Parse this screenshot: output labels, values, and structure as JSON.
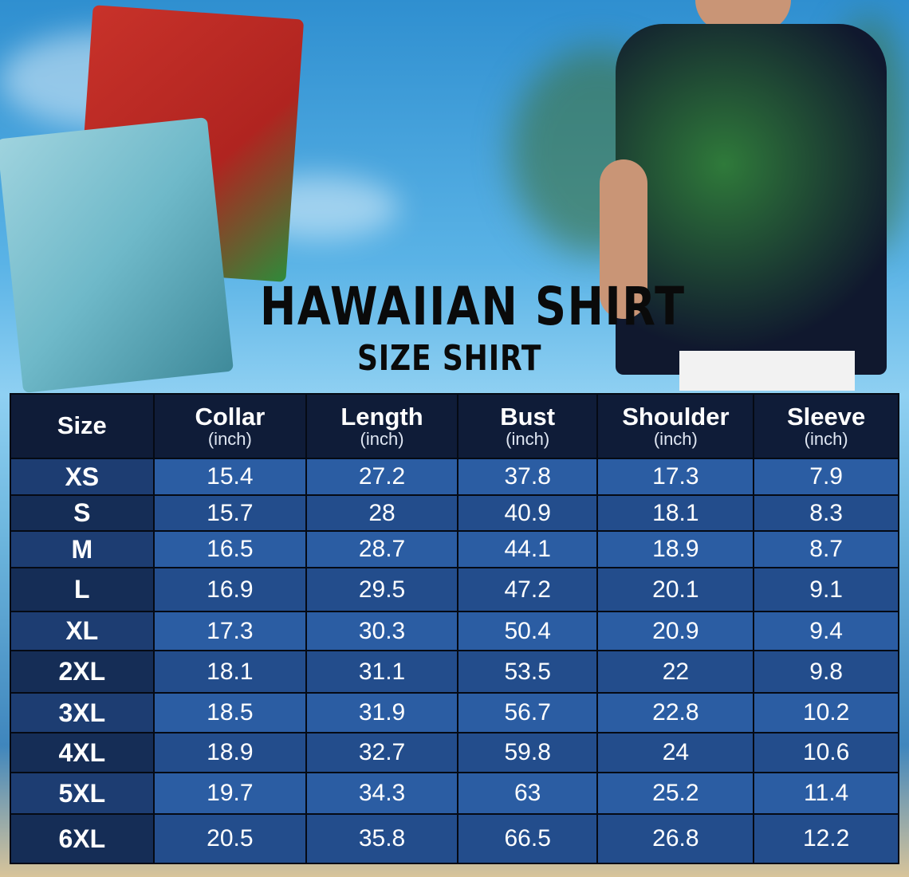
{
  "title": "HAWAIIAN SHIRT",
  "subtitle": "SIZE SHIRT",
  "table": {
    "headers": [
      {
        "label": "Size",
        "unit": ""
      },
      {
        "label": "Collar",
        "unit": "(inch)"
      },
      {
        "label": "Length",
        "unit": "(inch)"
      },
      {
        "label": "Bust",
        "unit": "(inch)"
      },
      {
        "label": "Shoulder",
        "unit": "(inch)"
      },
      {
        "label": "Sleeve",
        "unit": "(inch)"
      }
    ],
    "rows": [
      [
        "XS",
        "15.4",
        "27.2",
        "37.8",
        "17.3",
        "7.9"
      ],
      [
        "S",
        "15.7",
        "28",
        "40.9",
        "18.1",
        "8.3"
      ],
      [
        "M",
        "16.5",
        "28.7",
        "44.1",
        "18.9",
        "8.7"
      ],
      [
        "L",
        "16.9",
        "29.5",
        "47.2",
        "20.1",
        "9.1"
      ],
      [
        "XL",
        "17.3",
        "30.3",
        "50.4",
        "20.9",
        "9.4"
      ],
      [
        "2XL",
        "18.1",
        "31.1",
        "53.5",
        "22",
        "9.8"
      ],
      [
        "3XL",
        "18.5",
        "31.9",
        "56.7",
        "22.8",
        "10.2"
      ],
      [
        "4XL",
        "18.9",
        "32.7",
        "59.8",
        "24",
        "10.6"
      ],
      [
        "5XL",
        "19.7",
        "34.3",
        "63",
        "25.2",
        "11.4"
      ],
      [
        "6XL",
        "20.5",
        "35.8",
        "66.5",
        "26.8",
        "12.2"
      ]
    ]
  }
}
